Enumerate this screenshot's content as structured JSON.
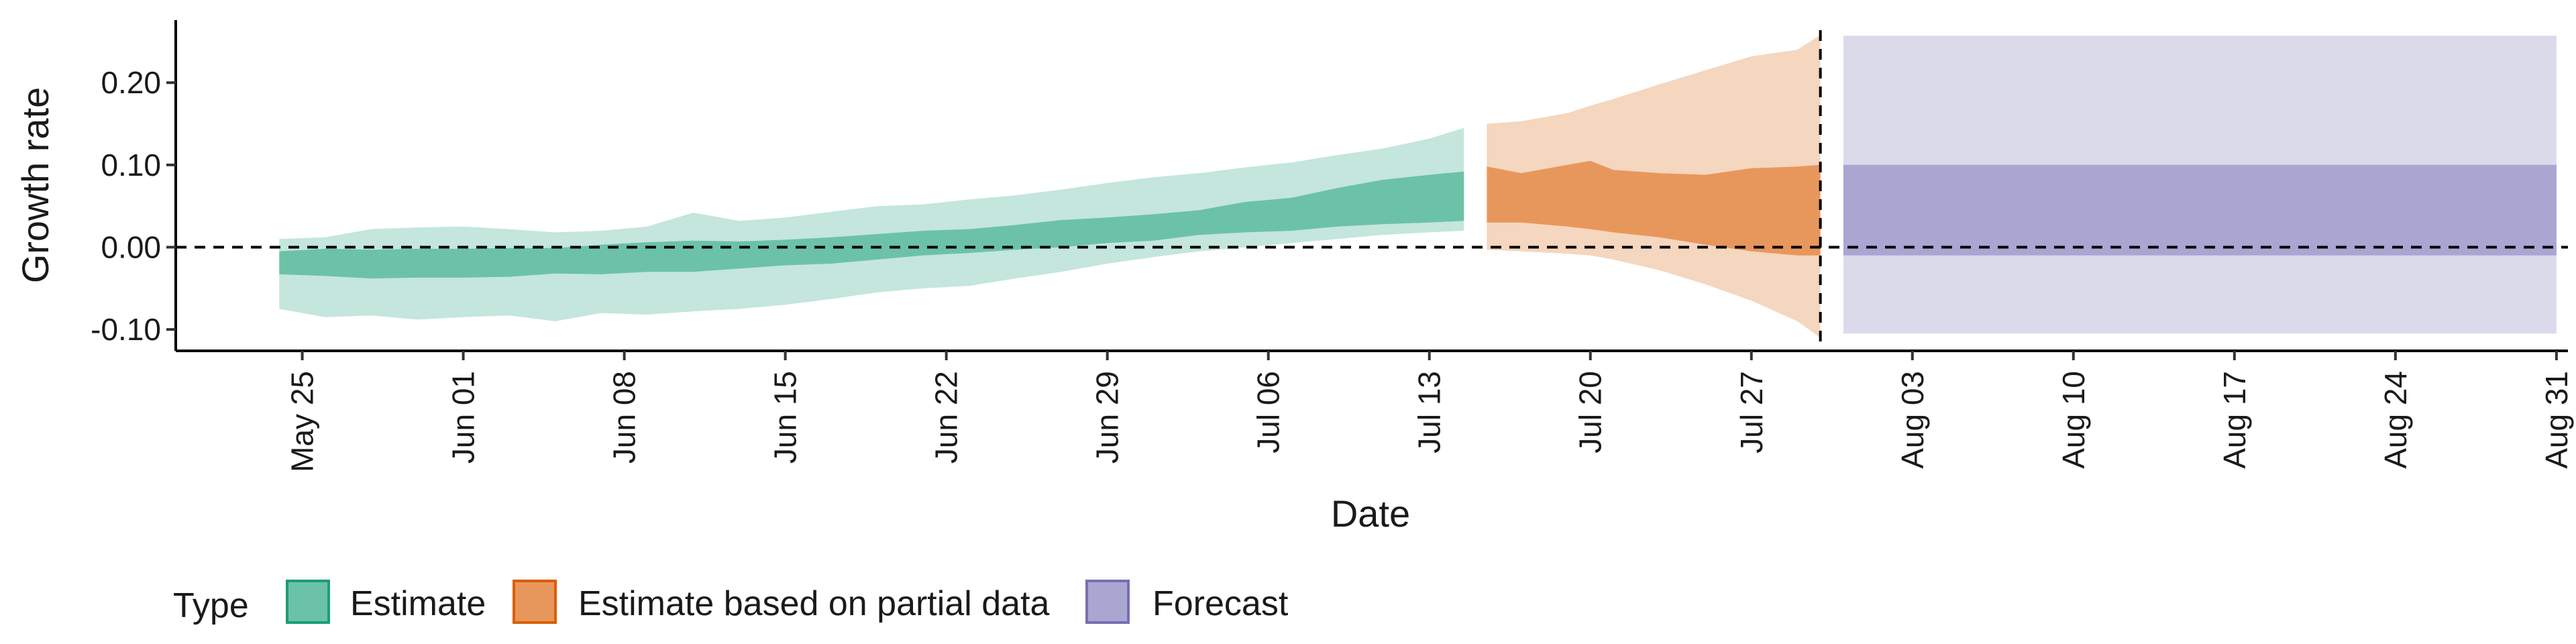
{
  "chart_data": {
    "type": "area",
    "xlabel": "Date",
    "ylabel": "Growth rate",
    "ylim": [
      -0.126,
      0.276
    ],
    "xlim_days": [
      -4.5,
      99.5
    ],
    "x_origin": "May 24",
    "y_ticks": [
      -0.1,
      0.0,
      0.1,
      0.2
    ],
    "y_tick_labels": [
      "-0.10",
      "0.00",
      "0.10",
      "0.20"
    ],
    "x_ticks": [
      {
        "day": 1,
        "label": "May 25"
      },
      {
        "day": 8,
        "label": "Jun 01"
      },
      {
        "day": 15,
        "label": "Jun 08"
      },
      {
        "day": 22,
        "label": "Jun 15"
      },
      {
        "day": 29,
        "label": "Jun 22"
      },
      {
        "day": 36,
        "label": "Jun 29"
      },
      {
        "day": 43,
        "label": "Jul 06"
      },
      {
        "day": 50,
        "label": "Jul 13"
      },
      {
        "day": 57,
        "label": "Jul 20"
      },
      {
        "day": 64,
        "label": "Jul 27"
      },
      {
        "day": 71,
        "label": "Aug 03"
      },
      {
        "day": 78,
        "label": "Aug 10"
      },
      {
        "day": 85,
        "label": "Aug 17"
      },
      {
        "day": 92,
        "label": "Aug 24"
      },
      {
        "day": 99,
        "label": "Aug 31"
      }
    ],
    "reference_lines": {
      "horizontal_y": 0.0,
      "vertical_day": 67
    },
    "series": [
      {
        "name": "Estimate",
        "x_days": [
          0,
          2,
          4,
          6,
          8,
          10,
          12,
          14,
          16,
          18,
          20,
          22,
          24,
          26,
          28,
          30,
          32,
          34,
          36,
          38,
          40,
          42,
          44,
          46,
          48,
          50,
          51.5
        ],
        "outer_upper": [
          0.01,
          0.012,
          0.022,
          0.024,
          0.025,
          0.022,
          0.018,
          0.02,
          0.025,
          0.042,
          0.032,
          0.036,
          0.043,
          0.05,
          0.052,
          0.058,
          0.063,
          0.07,
          0.078,
          0.085,
          0.09,
          0.097,
          0.103,
          0.112,
          0.12,
          0.132,
          0.145
        ],
        "inner_upper": [
          -0.005,
          -0.002,
          -0.003,
          -0.002,
          -0.002,
          -0.001,
          -0.001,
          0.003,
          0.006,
          0.008,
          0.007,
          0.009,
          0.012,
          0.016,
          0.02,
          0.022,
          0.027,
          0.033,
          0.036,
          0.04,
          0.045,
          0.055,
          0.06,
          0.072,
          0.082,
          0.088,
          0.092
        ],
        "inner_lower": [
          -0.033,
          -0.035,
          -0.038,
          -0.037,
          -0.037,
          -0.036,
          -0.032,
          -0.033,
          -0.03,
          -0.03,
          -0.026,
          -0.022,
          -0.02,
          -0.015,
          -0.01,
          -0.007,
          -0.003,
          0.0,
          0.005,
          0.008,
          0.015,
          0.018,
          0.02,
          0.025,
          0.028,
          0.03,
          0.032
        ],
        "outer_lower": [
          -0.075,
          -0.085,
          -0.083,
          -0.088,
          -0.085,
          -0.083,
          -0.09,
          -0.08,
          -0.082,
          -0.078,
          -0.075,
          -0.07,
          -0.063,
          -0.055,
          -0.05,
          -0.047,
          -0.038,
          -0.03,
          -0.02,
          -0.012,
          -0.005,
          0.0,
          0.005,
          0.01,
          0.015,
          0.018,
          0.02
        ]
      },
      {
        "name": "Estimate based on partial data",
        "x_days": [
          52.5,
          54,
          56,
          57,
          58,
          60,
          62,
          64,
          66,
          67
        ],
        "outer_upper": [
          0.15,
          0.153,
          0.163,
          0.172,
          0.18,
          0.198,
          0.215,
          0.232,
          0.24,
          0.258
        ],
        "inner_upper": [
          0.098,
          0.09,
          0.1,
          0.105,
          0.094,
          0.09,
          0.088,
          0.096,
          0.098,
          0.1
        ],
        "inner_lower": [
          0.03,
          0.03,
          0.025,
          0.022,
          0.018,
          0.012,
          0.003,
          -0.005,
          -0.01,
          -0.01
        ],
        "outer_lower": [
          -0.003,
          -0.005,
          -0.008,
          -0.01,
          -0.015,
          -0.028,
          -0.045,
          -0.065,
          -0.09,
          -0.11
        ]
      },
      {
        "name": "Forecast",
        "x_days": [
          68,
          99
        ],
        "outer_upper": [
          0.257,
          0.257
        ],
        "inner_upper": [
          0.1,
          0.1
        ],
        "inner_lower": [
          -0.01,
          -0.01
        ],
        "outer_lower": [
          -0.105,
          -0.105
        ]
      }
    ],
    "legend": {
      "title": "Type",
      "placement": "bottom-left",
      "entries": [
        "Estimate",
        "Estimate based on partial data",
        "Forecast"
      ]
    }
  },
  "colors": {
    "estimate": "#1b9e77",
    "partial": "#d95f02",
    "forecast": "#7570b3",
    "estimate_fill": "#6cc2a7",
    "partial_fill": "#e8975c",
    "forecast_fill": "#a9a6d2",
    "axis": "#000000"
  }
}
